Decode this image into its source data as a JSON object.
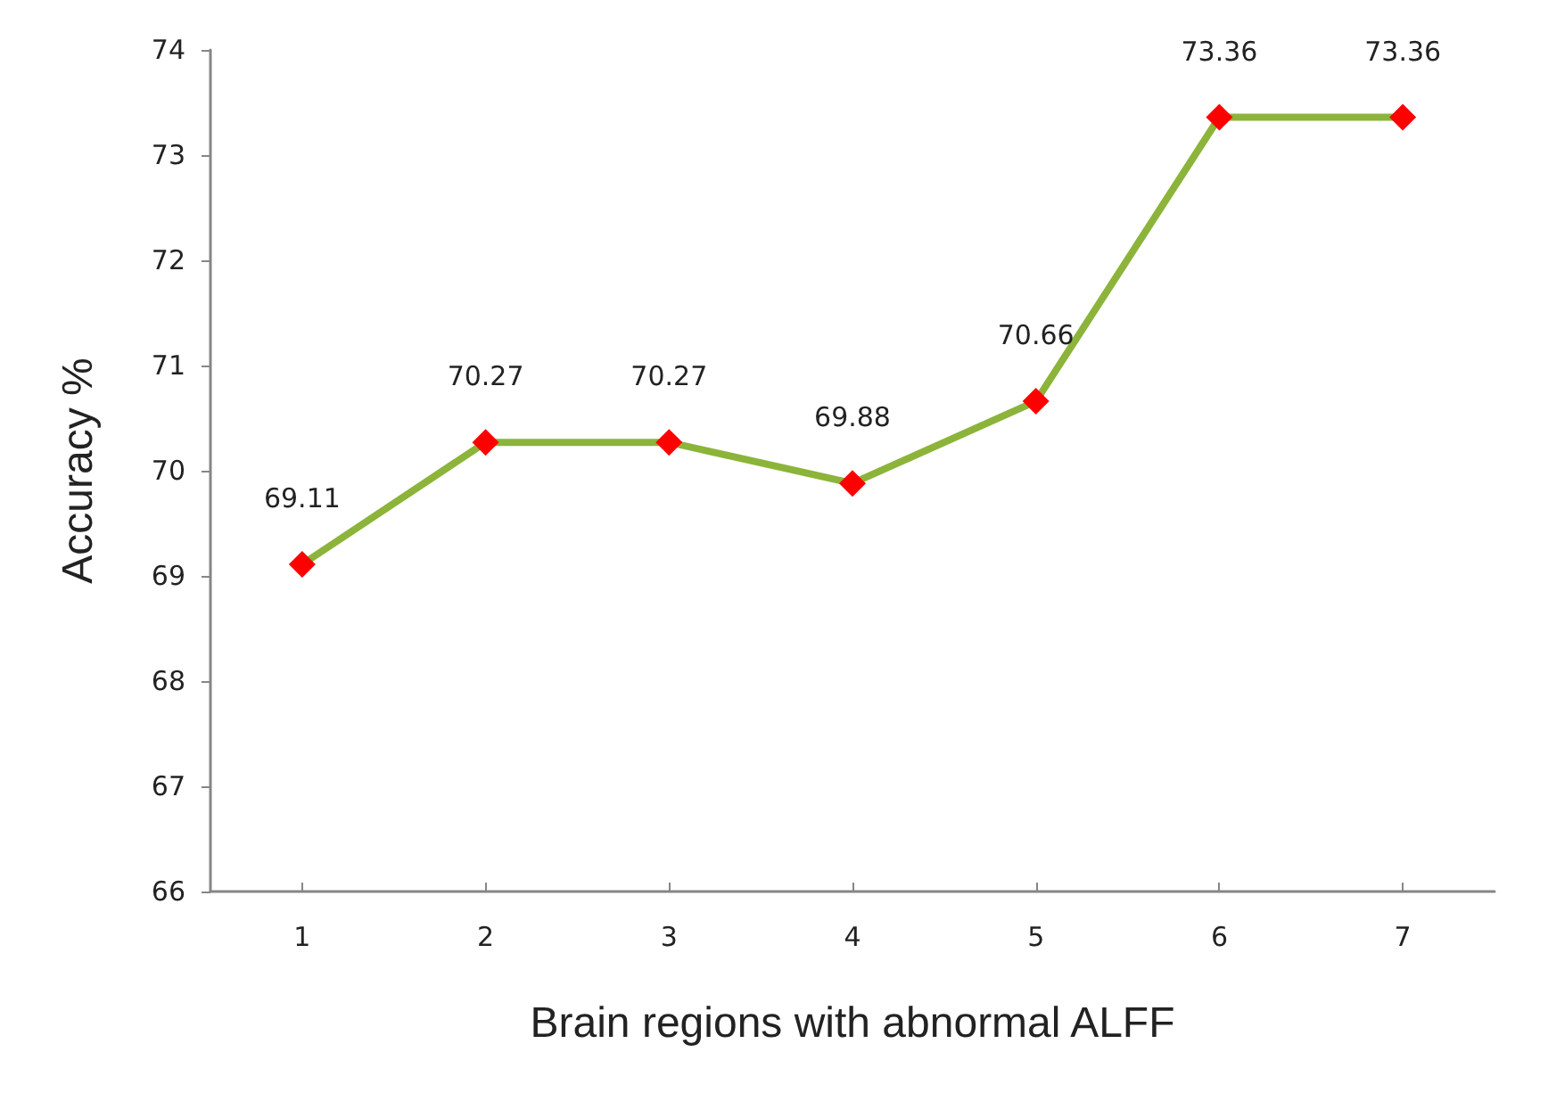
{
  "chart_data": {
    "type": "line",
    "xlabel": "Brain regions with abnormal ALFF",
    "ylabel": "Accuracy %",
    "categories": [
      "1",
      "2",
      "3",
      "4",
      "5",
      "6",
      "7"
    ],
    "series": [
      {
        "color": "#8cb43a",
        "colors": [
          "#ff0000",
          "#ff0000",
          "#ff0000",
          "#ff0000",
          "#ff0000",
          "#ff0000",
          "#ff0000"
        ],
        "values": [
          69.11,
          70.27,
          70.27,
          69.88,
          70.66,
          73.36,
          73.36
        ]
      }
    ],
    "ylim": [
      66,
      74
    ],
    "yticks": [
      66,
      67,
      68,
      69,
      70,
      71,
      72,
      73,
      74
    ],
    "grid": false,
    "marker": "diamond",
    "line_style": "solid",
    "data_labels": true
  }
}
